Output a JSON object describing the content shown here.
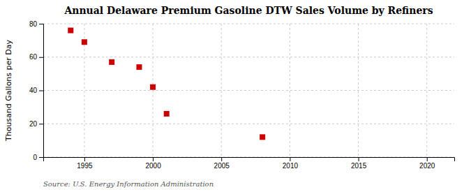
{
  "chart_data": {
    "type": "scatter",
    "title": "Annual Delaware Premium Gasoline DTW Sales Volume by Refiners",
    "ylabel": "Thousand Gallons per Day",
    "annotations": [
      "Source: U.S. Energy Information Administration"
    ],
    "x": [
      1994,
      1995,
      1997,
      1999,
      2000,
      2001,
      2008
    ],
    "values": [
      76,
      69,
      57,
      54,
      42,
      26,
      12
    ],
    "color": "#cc0000",
    "marker": "square",
    "xlim": [
      1992,
      2022
    ],
    "ylim": [
      0,
      80
    ],
    "xticks": [
      1995,
      2000,
      2005,
      2010,
      2015,
      2020
    ],
    "yticks": [
      0,
      20,
      40,
      60,
      80
    ],
    "grid": true
  }
}
